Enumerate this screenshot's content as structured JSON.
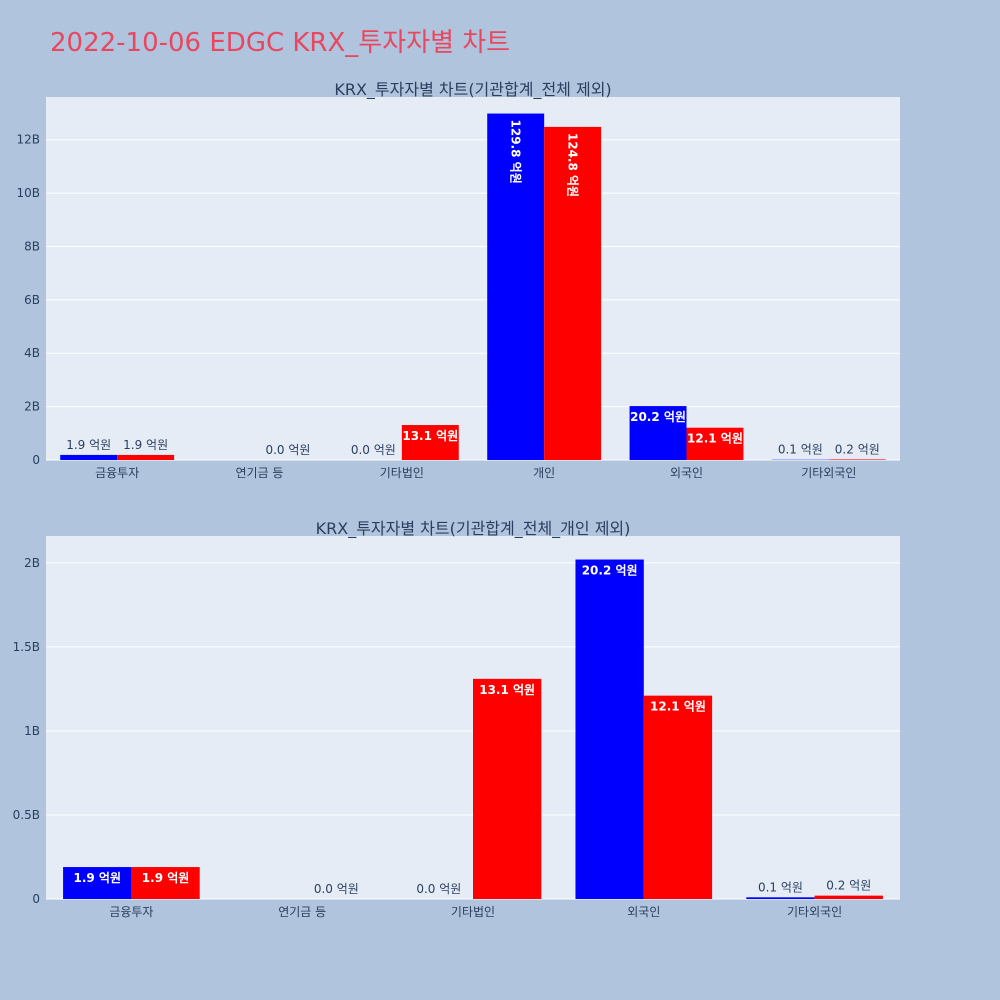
{
  "page": {
    "title": "2022-10-06 EDGC KRX_투자자별 차트"
  },
  "colors": {
    "series1": "#0000ff",
    "series2": "#ff0000",
    "plot_bg": "#e5ecf6",
    "page_bg": "#b0c4de",
    "title": "#e8475f"
  },
  "chart_data": [
    {
      "type": "bar",
      "title": "KRX_투자자별 차트(기관합계_전체 제외)",
      "categories": [
        "금융투자",
        "연기금 등",
        "기타법인",
        "개인",
        "외국인",
        "기타외국인"
      ],
      "series": [
        {
          "values": [
            190000000,
            0,
            0,
            12980000000,
            2020000000,
            10000000
          ],
          "labels": [
            "1.9 억원",
            "",
            "0.0 억원",
            "129.8 억원",
            "20.2 억원",
            "0.1 억원"
          ]
        },
        {
          "values": [
            190000000,
            0,
            1310000000,
            12480000000,
            1210000000,
            20000000
          ],
          "labels": [
            "1.9 억원",
            "0.0 억원",
            "13.1 억원",
            "124.8 억원",
            "12.1 억원",
            "0.2 억원"
          ]
        }
      ],
      "yticks": [
        0,
        2000000000,
        4000000000,
        6000000000,
        8000000000,
        10000000000,
        12000000000
      ],
      "yticklabels": [
        "0",
        "2B",
        "4B",
        "6B",
        "8B",
        "10B",
        "12B"
      ],
      "ylim": [
        0,
        13600000000
      ],
      "grid": true
    },
    {
      "type": "bar",
      "title": "KRX_투자자별 차트(기관합계_전체_개인 제외)",
      "categories": [
        "금융투자",
        "연기금 등",
        "기타법인",
        "외국인",
        "기타외국인"
      ],
      "series": [
        {
          "values": [
            190000000,
            0,
            0,
            2020000000,
            10000000
          ],
          "labels": [
            "1.9 억원",
            "",
            "0.0 억원",
            "20.2 억원",
            "0.1 억원"
          ]
        },
        {
          "values": [
            190000000,
            0,
            1310000000,
            1210000000,
            20000000
          ],
          "labels": [
            "1.9 억원",
            "0.0 억원",
            "13.1 억원",
            "12.1 억원",
            "0.2 억원"
          ]
        }
      ],
      "yticks": [
        0,
        500000000,
        1000000000,
        1500000000,
        2000000000
      ],
      "yticklabels": [
        "0",
        "0.5B",
        "1B",
        "1.5B",
        "2B"
      ],
      "ylim": [
        0,
        2160000000
      ],
      "grid": true
    }
  ]
}
